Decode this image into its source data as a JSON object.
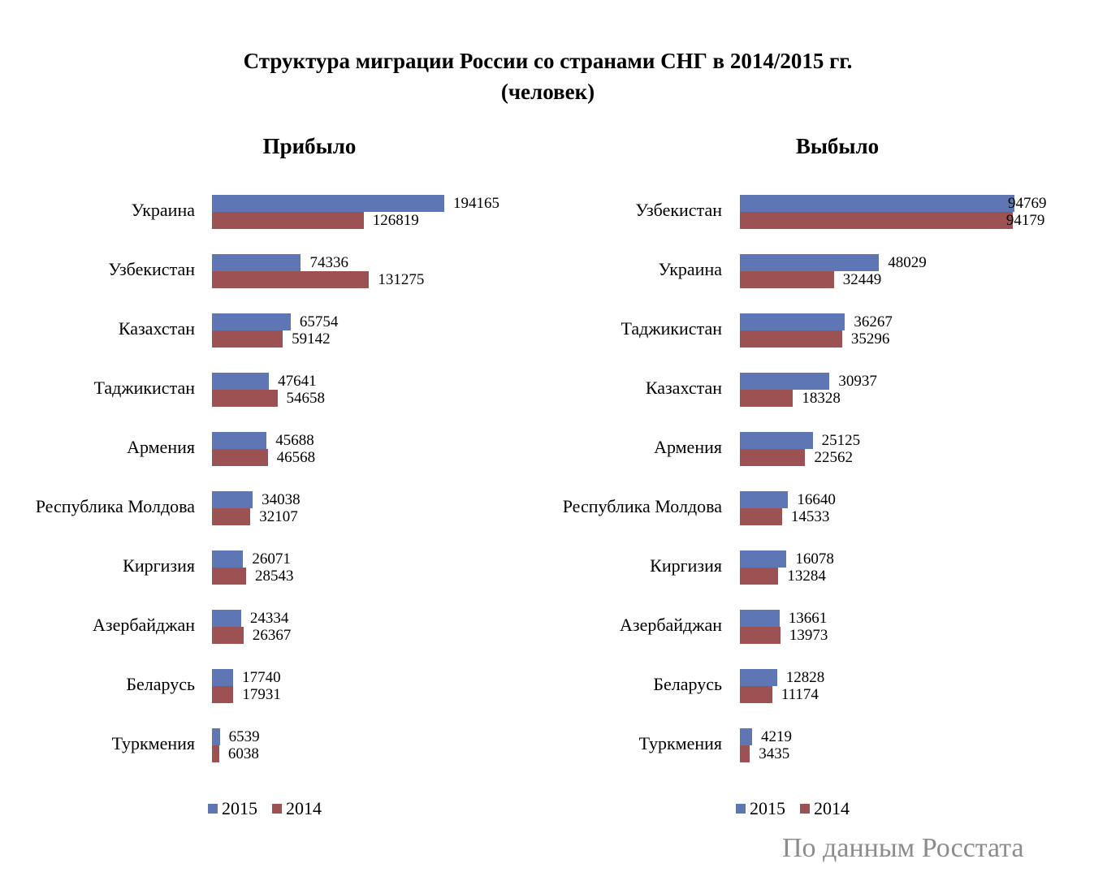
{
  "title_line1": "Структура миграции России со странами СНГ  в 2014/2015 гг.",
  "title_line2": "(человек)",
  "footer": "По данным Росстата",
  "colors": {
    "2015": "#5f76b4",
    "2014": "#9c5253"
  },
  "chart_data": [
    {
      "type": "bar",
      "orientation": "horizontal",
      "title": "Прибыло",
      "categories": [
        "Украина",
        "Узбекистан",
        "Казахстан",
        "Таджикистан",
        "Армения",
        "Республика Молдова",
        "Киргизия",
        "Азербайджан",
        "Беларусь",
        "Туркмения"
      ],
      "series": [
        {
          "name": "2015",
          "values": [
            194165,
            74336,
            65754,
            47641,
            45688,
            34038,
            26071,
            24334,
            17740,
            6539
          ]
        },
        {
          "name": "2014",
          "values": [
            126819,
            131275,
            59142,
            54658,
            46568,
            32107,
            28543,
            26367,
            17931,
            6038
          ]
        }
      ],
      "legend": "bottom",
      "grid": false
    },
    {
      "type": "bar",
      "orientation": "horizontal",
      "title": "Выбыло",
      "categories": [
        "Узбекистан",
        "Украина",
        "Таджикистан",
        "Казахстан",
        "Армения",
        "Республика Молдова",
        "Киргизия",
        "Азербайджан",
        "Беларусь",
        "Туркмения"
      ],
      "series": [
        {
          "name": "2015",
          "values": [
            94769,
            48029,
            36267,
            30937,
            25125,
            16640,
            16078,
            13661,
            12828,
            4219
          ]
        },
        {
          "name": "2014",
          "values": [
            94179,
            32449,
            35296,
            18328,
            22562,
            14533,
            13284,
            13973,
            11174,
            3435
          ]
        }
      ],
      "legend": "bottom",
      "grid": false
    }
  ]
}
